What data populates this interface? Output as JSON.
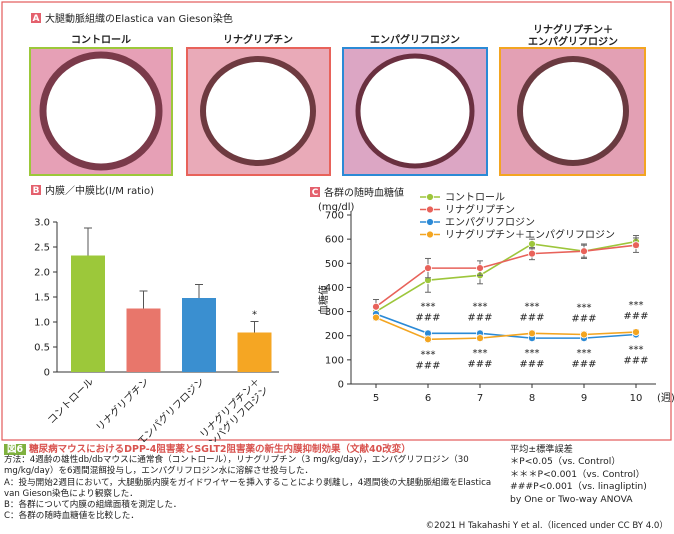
{
  "panel_a": {
    "label": "A",
    "title": "大腿動脈組織のElastica van Gieson染色",
    "images": [
      [
        "コントロール"
      ],
      [
        "リナグリプチン"
      ],
      [
        "エンパグリフロジン"
      ],
      [
        "リナグリプチン＋",
        "エンパグリフロジン"
      ]
    ]
  },
  "chart_data": [
    {
      "type": "bar",
      "label": "B",
      "title": "内膜／中膜比(I/M ratio)",
      "categories": [
        "コントロール",
        "リナグリプチン",
        "エンパグリフロジン",
        "リナグリプチン＋\nエンパグリフロジン"
      ],
      "values": [
        2.33,
        1.27,
        1.48,
        0.79
      ],
      "errors": [
        0.55,
        0.35,
        0.27,
        0.22
      ],
      "colors": [
        "#9cc83a",
        "#e8766b",
        "#3a8fd0",
        "#f5a623"
      ],
      "annotations": [
        null,
        null,
        null,
        "*"
      ],
      "ylim": [
        0,
        3
      ],
      "yticks": [
        0,
        {
          "value": 0.5,
          "label": "0.5"
        },
        {
          "value": 1,
          "label": "1.0"
        },
        {
          "value": 1.5,
          "label": "1.5"
        },
        {
          "value": 2,
          "label": "2.0"
        },
        {
          "value": 2.5,
          "label": "2.5"
        },
        {
          "value": 3,
          "label": "3.0"
        }
      ]
    },
    {
      "type": "line",
      "label": "C",
      "title": "各群の随時血糖値",
      "y_unit": "(mg/dl)",
      "y_label": "血糖値",
      "x_label": "(週)",
      "x": [
        5,
        6,
        7,
        8,
        9,
        10
      ],
      "xlim": [
        5,
        10
      ],
      "xticks": [
        5,
        6,
        7,
        8,
        9,
        10
      ],
      "ylim": [
        0,
        700
      ],
      "yticks": [
        0,
        100,
        200,
        300,
        400,
        500,
        600,
        700
      ],
      "legend": "top",
      "series": [
        {
          "name": "コントロール",
          "color": "#9dc63b",
          "values": [
            300,
            430,
            450,
            580,
            550,
            590
          ],
          "errors": [
            25,
            50,
            35,
            20,
            30,
            25
          ]
        },
        {
          "name": "リナグリプチン",
          "color": "#e8625a",
          "values": [
            320,
            480,
            480,
            540,
            550,
            575
          ],
          "errors": [
            30,
            40,
            30,
            25,
            25,
            30
          ]
        },
        {
          "name": "エンパグリフロジン",
          "color": "#2b8ad6",
          "values": [
            290,
            210,
            210,
            190,
            190,
            205
          ],
          "errors": [
            10,
            10,
            10,
            10,
            10,
            10
          ]
        },
        {
          "name": "リナグリプチン＋エンパグリフロジン",
          "color": "#f3a521",
          "values": [
            275,
            185,
            190,
            210,
            205,
            215
          ],
          "errors": [
            10,
            10,
            10,
            10,
            10,
            10
          ]
        }
      ],
      "annotations": [
        {
          "x": 6,
          "above": [
            "***",
            "###"
          ],
          "below": [
            "***",
            "###"
          ]
        },
        {
          "x": 7,
          "above": [
            "***",
            "###"
          ],
          "below": [
            "***",
            "###"
          ]
        },
        {
          "x": 8,
          "above": [
            "***",
            "###"
          ],
          "below": [
            "***",
            "###"
          ]
        },
        {
          "x": 9,
          "above": [
            "***",
            "###"
          ],
          "below": [
            "***",
            "###"
          ]
        },
        {
          "x": 10,
          "above": [
            "***",
            "###"
          ],
          "below": [
            "***",
            "###"
          ]
        }
      ]
    }
  ],
  "notes": [
    "平均±標準誤差",
    "＊P<0.05（vs. Control）",
    "＊＊＊P<0.001（vs. Control）",
    "###P<0.001（vs. linagliptin)",
    "by One or Two-way ANOVA"
  ],
  "caption": {
    "figure": "図6",
    "title": "糖尿病マウスにおけるDPP-4阻害薬とSGLT2阻害薬の新生内膜抑制効果（文献40改変）",
    "lines": [
      "方法：4週齢の雄性db/dbマウスに通常食（コントロール），リナグリプチン（3 mg/kg/day），エンパグリフロジン（30 mg/kg/day）を6週間混餌投与し，エンパグリフロジン水に溶解させ投与した．",
      "A：投与開始2週目において，大腿動脈内膜をガイドワイヤーを挿入することにより剥離し，4週間後の大腿動脈組織をElastica van Gieson染色により観察した．",
      "B：各群について内膜の組織面積を測定した．",
      "C：各群の随時血糖値を比較した．"
    ],
    "credit": "©2021 H Takahashi Y et al.（licenced under CC BY 4.0）"
  }
}
